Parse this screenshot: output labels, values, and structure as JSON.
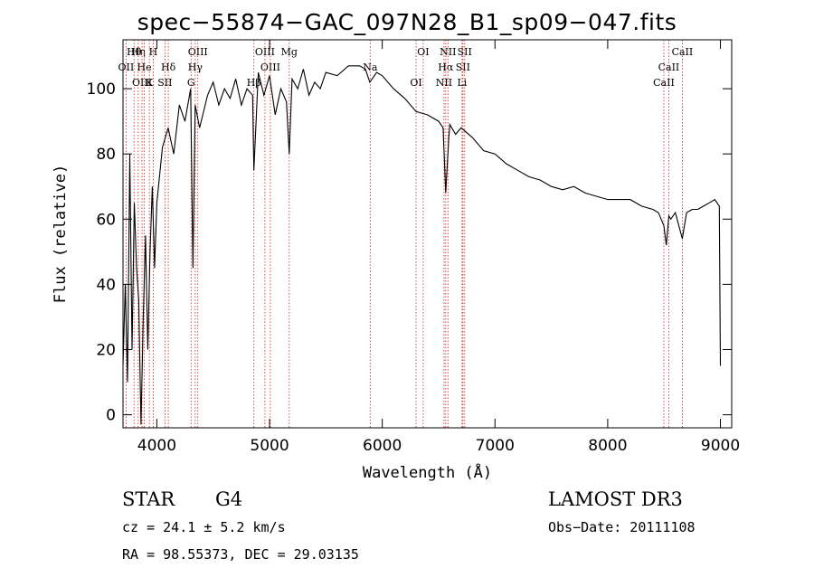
{
  "title": "spec−55874−GAC_097N28_B1_sp09−047.fits",
  "info": {
    "class": "STAR",
    "subclass": "G4",
    "survey": "LAMOST DR3",
    "cz": "cz = 24.1 ± 5.2 km/s",
    "obs_date": "Obs−Date: 20111108",
    "radec": "RA =  98.55373, DEC =  29.03135"
  },
  "chart_data": {
    "type": "line",
    "title": "spec−55874−GAC_097N28_B1_sp09−047.fits",
    "xlabel": "Wavelength (Å)",
    "ylabel": "Flux (relative)",
    "xlim": [
      3700,
      9100
    ],
    "ylim": [
      -4,
      115
    ],
    "x_ticks": [
      4000,
      5000,
      6000,
      7000,
      8000,
      9000
    ],
    "y_ticks": [
      0,
      20,
      40,
      60,
      80,
      100
    ],
    "grid": false,
    "series": [
      {
        "name": "flux",
        "color": "#000000",
        "x": [
          3700,
          3720,
          3740,
          3760,
          3780,
          3800,
          3820,
          3840,
          3860,
          3880,
          3900,
          3920,
          3940,
          3960,
          3980,
          4000,
          4050,
          4100,
          4150,
          4200,
          4250,
          4300,
          4320,
          4340,
          4380,
          4450,
          4500,
          4550,
          4600,
          4650,
          4700,
          4750,
          4800,
          4850,
          4861,
          4900,
          4950,
          5000,
          5050,
          5100,
          5150,
          5175,
          5200,
          5250,
          5300,
          5350,
          5400,
          5450,
          5500,
          5600,
          5700,
          5800,
          5850,
          5890,
          5950,
          6000,
          6100,
          6200,
          6300,
          6400,
          6500,
          6540,
          6563,
          6590,
          6600,
          6650,
          6700,
          6800,
          6900,
          7000,
          7100,
          7200,
          7300,
          7400,
          7500,
          7600,
          7700,
          7800,
          7900,
          8000,
          8100,
          8200,
          8300,
          8400,
          8450,
          8498,
          8520,
          8542,
          8560,
          8600,
          8662,
          8700,
          8750,
          8800,
          8850,
          8900,
          8950,
          8990,
          9000
        ],
        "values": [
          15,
          40,
          10,
          80,
          20,
          65,
          45,
          35,
          -3,
          30,
          55,
          20,
          50,
          70,
          45,
          65,
          82,
          88,
          80,
          95,
          90,
          100,
          45,
          95,
          88,
          98,
          102,
          95,
          100,
          97,
          103,
          95,
          100,
          98,
          75,
          105,
          98,
          104,
          92,
          100,
          96,
          80,
          103,
          100,
          106,
          98,
          102,
          100,
          105,
          104,
          107,
          107,
          106,
          102,
          105,
          104,
          100,
          97,
          93,
          92,
          90,
          88,
          68,
          85,
          89,
          86,
          88,
          85,
          81,
          80,
          77,
          75,
          73,
          72,
          70,
          69,
          70,
          68,
          67,
          66,
          66,
          66,
          64,
          63,
          62,
          58,
          52,
          61,
          60,
          62,
          54,
          62,
          63,
          63,
          64,
          65,
          66,
          64,
          15
        ]
      }
    ],
    "lines": [
      {
        "label": "Hθ",
        "wavelength": 3798
      },
      {
        "label": "OII",
        "wavelength": 3727
      },
      {
        "label": "OIII",
        "wavelength": 3869
      },
      {
        "label": "Hη",
        "wavelength": 3835
      },
      {
        "label": "He",
        "wavelength": 3889
      },
      {
        "label": "K",
        "wavelength": 3934
      },
      {
        "label": "H",
        "wavelength": 3968
      },
      {
        "label": "Hδ",
        "wavelength": 4102
      },
      {
        "label": "SII",
        "wavelength": 4072
      },
      {
        "label": "OIII",
        "wavelength": 4364
      },
      {
        "label": "Hγ",
        "wavelength": 4341
      },
      {
        "label": "G",
        "wavelength": 4304
      },
      {
        "label": "OIII",
        "wavelength": 4959
      },
      {
        "label": "OIII",
        "wavelength": 5007
      },
      {
        "label": "Hβ",
        "wavelength": 4861
      },
      {
        "label": "Mg",
        "wavelength": 5175
      },
      {
        "label": "Na",
        "wavelength": 5893
      },
      {
        "label": "OI",
        "wavelength": 6300
      },
      {
        "label": "OI",
        "wavelength": 6363
      },
      {
        "label": "Hα",
        "wavelength": 6563
      },
      {
        "label": "NII",
        "wavelength": 6548
      },
      {
        "label": "NII",
        "wavelength": 6583
      },
      {
        "label": "SII",
        "wavelength": 6716
      },
      {
        "label": "Li",
        "wavelength": 6708
      },
      {
        "label": "SII",
        "wavelength": 6731
      },
      {
        "label": "CaII",
        "wavelength": 8542
      },
      {
        "label": "CaII",
        "wavelength": 8498
      },
      {
        "label": "CaII",
        "wavelength": 8662
      }
    ],
    "line_color": "#cc2222"
  }
}
